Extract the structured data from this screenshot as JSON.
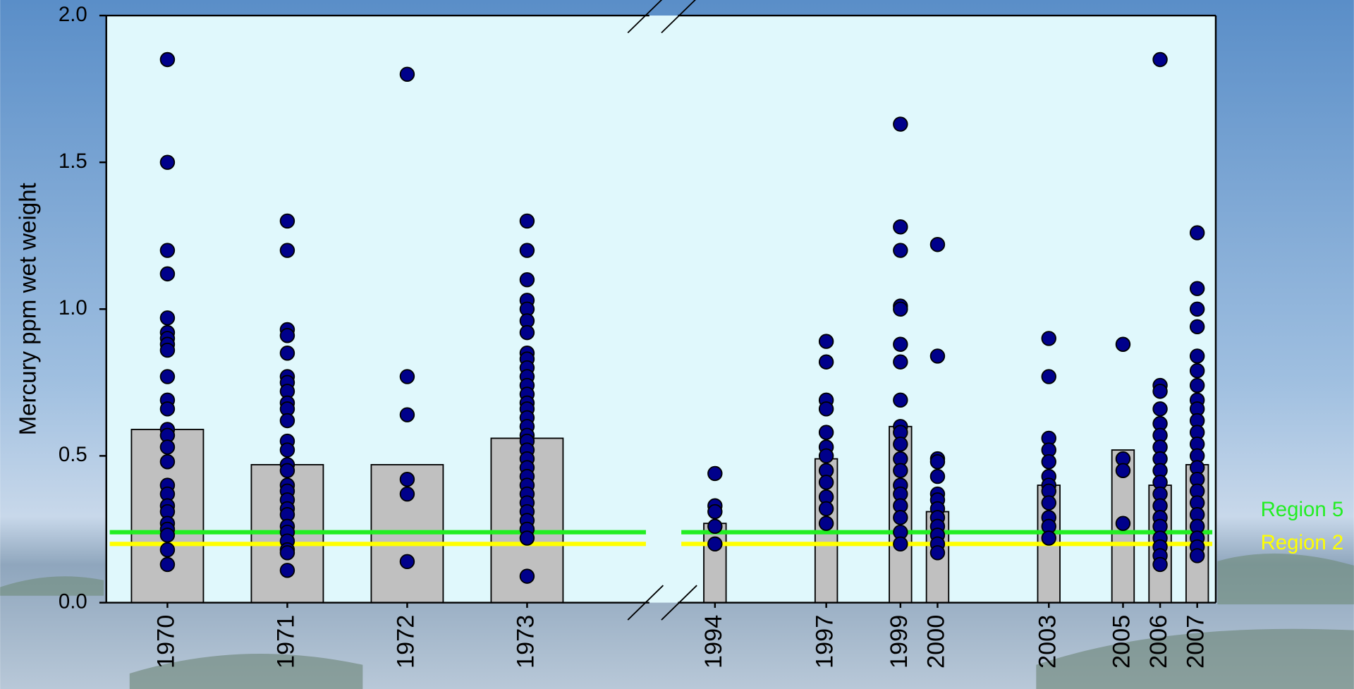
{
  "chart_data": {
    "type": "bar-scatter",
    "y_label": "Mercury ppm wet weight",
    "x": [
      1970,
      1971,
      1972,
      1973,
      1994,
      1997,
      1999,
      2000,
      2003,
      2005,
      2006,
      2007
    ],
    "x_segments": [
      {
        "xlim": [
          1969.49,
          1974.02
        ]
      },
      {
        "xlim": [
          1993.0,
          2007.5
        ]
      }
    ],
    "bar_width": 0.6,
    "values": [
      0.59,
      0.47,
      0.47,
      0.56,
      0.27,
      0.49,
      0.6,
      0.31,
      0.4,
      0.52,
      0.4,
      0.47
    ],
    "bar_color": "#c0c0c0",
    "point_color": "#00008b",
    "points": [
      [
        1.85,
        1.5,
        1.2,
        1.12,
        0.97,
        0.92,
        0.9,
        0.88,
        0.86,
        0.77,
        0.69,
        0.66,
        0.59,
        0.57,
        0.53,
        0.48,
        0.4,
        0.37,
        0.33,
        0.31,
        0.27,
        0.25,
        0.23,
        0.18,
        0.13
      ],
      [
        1.3,
        1.2,
        0.93,
        0.91,
        0.85,
        0.77,
        0.75,
        0.72,
        0.68,
        0.66,
        0.62,
        0.55,
        0.52,
        0.47,
        0.45,
        0.4,
        0.38,
        0.35,
        0.32,
        0.3,
        0.26,
        0.24,
        0.21,
        0.18,
        0.17,
        0.11
      ],
      [
        1.8,
        0.77,
        0.64,
        0.42,
        0.37,
        0.14
      ],
      [
        1.3,
        1.2,
        1.1,
        1.03,
        1.0,
        0.96,
        0.92,
        0.85,
        0.83,
        0.8,
        0.77,
        0.74,
        0.71,
        0.68,
        0.66,
        0.63,
        0.6,
        0.57,
        0.55,
        0.52,
        0.49,
        0.46,
        0.43,
        0.4,
        0.37,
        0.34,
        0.31,
        0.28,
        0.25,
        0.22,
        0.09
      ],
      [
        0.44,
        0.33,
        0.31,
        0.26,
        0.2
      ],
      [
        0.89,
        0.82,
        0.69,
        0.66,
        0.58,
        0.53,
        0.5,
        0.45,
        0.41,
        0.36,
        0.32,
        0.27
      ],
      [
        1.63,
        1.28,
        1.2,
        1.01,
        1.0,
        0.88,
        0.82,
        0.69,
        0.6,
        0.58,
        0.54,
        0.49,
        0.45,
        0.4,
        0.37,
        0.33,
        0.29,
        0.24,
        0.2
      ],
      [
        1.22,
        0.84,
        0.49,
        0.48,
        0.43,
        0.37,
        0.35,
        0.32,
        0.29,
        0.26,
        0.23,
        0.2,
        0.17
      ],
      [
        0.9,
        0.77,
        0.56,
        0.52,
        0.48,
        0.43,
        0.4,
        0.38,
        0.34,
        0.29,
        0.26,
        0.22
      ],
      [
        0.88,
        0.49,
        0.45,
        0.27
      ],
      [
        1.85,
        0.74,
        0.72,
        0.66,
        0.61,
        0.57,
        0.53,
        0.49,
        0.45,
        0.41,
        0.37,
        0.33,
        0.29,
        0.26,
        0.22,
        0.19,
        0.16,
        0.13
      ],
      [
        1.26,
        1.07,
        1.0,
        0.94,
        0.84,
        0.79,
        0.74,
        0.69,
        0.66,
        0.62,
        0.58,
        0.54,
        0.5,
        0.46,
        0.42,
        0.38,
        0.34,
        0.3,
        0.26,
        0.22,
        0.19,
        0.16
      ]
    ],
    "reference_lines": [
      {
        "label": "Region 5",
        "value": 0.24,
        "color": "#22ee22"
      },
      {
        "label": "Region 2",
        "value": 0.2,
        "color": "#ffff00"
      }
    ],
    "ylim": [
      0,
      2
    ],
    "yticks": [
      {
        "value": 0,
        "label": "0.0"
      },
      {
        "value": 0.5,
        "label": "0.5"
      },
      {
        "value": 1,
        "label": "1.0"
      },
      {
        "value": 1.5,
        "label": "1.5"
      },
      {
        "value": 2,
        "label": "2.0"
      }
    ]
  }
}
